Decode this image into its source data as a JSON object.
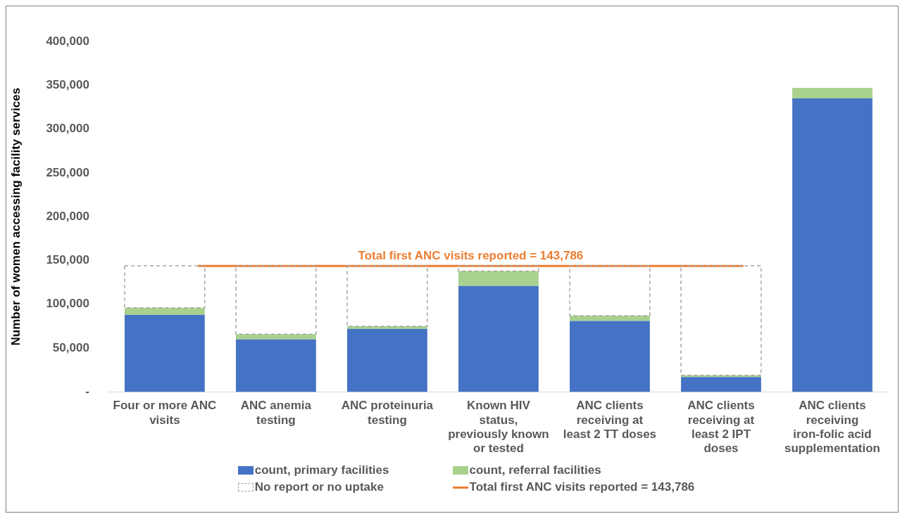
{
  "chart_data": {
    "type": "bar",
    "stacked": true,
    "ylabel": "Number of women accessing facility services",
    "categories": [
      "Four or more ANC visits",
      "ANC anemia testing",
      "ANC proteinuria testing",
      "Known HIV status, previously known or tested",
      "ANC clients receiving at least 2 TT doses",
      "ANC clients receiving at least 2 IPT doses",
      "ANC clients receiving iron-folic acid supplementation"
    ],
    "series": [
      {
        "name": "count, primary facilities",
        "color": "#4472c4",
        "values": [
          88000,
          60000,
          72000,
          121000,
          81000,
          17000,
          335000
        ]
      },
      {
        "name": "count, referral facilities",
        "color": "#a9d18e",
        "values": [
          8000,
          6000,
          3000,
          17000,
          6000,
          2000,
          12000
        ]
      },
      {
        "name": "No report or no uptake",
        "color": "#a6a6a6",
        "line_style": "dashed",
        "values": [
          48000,
          78000,
          69000,
          6000,
          57000,
          125000,
          null
        ]
      }
    ],
    "ylim": [
      0,
      400000
    ],
    "yticks": [
      {
        "value": 0,
        "label": "-"
      },
      {
        "value": 50000,
        "label": "50,000"
      },
      {
        "value": 100000,
        "label": "100,000"
      },
      {
        "value": 150000,
        "label": "150,000"
      },
      {
        "value": 200000,
        "label": "200,000"
      },
      {
        "value": 250000,
        "label": "250,000"
      },
      {
        "value": 300000,
        "label": "300,000"
      },
      {
        "value": 350000,
        "label": "350,000"
      },
      {
        "value": 400000,
        "label": "400,000"
      }
    ],
    "ref_lines": [
      {
        "axis": "y",
        "value": 143786,
        "label": "Total first ANC visits reported = 143,786",
        "color": "#ed7d31"
      }
    ],
    "grid": false,
    "legend": "bottom"
  }
}
